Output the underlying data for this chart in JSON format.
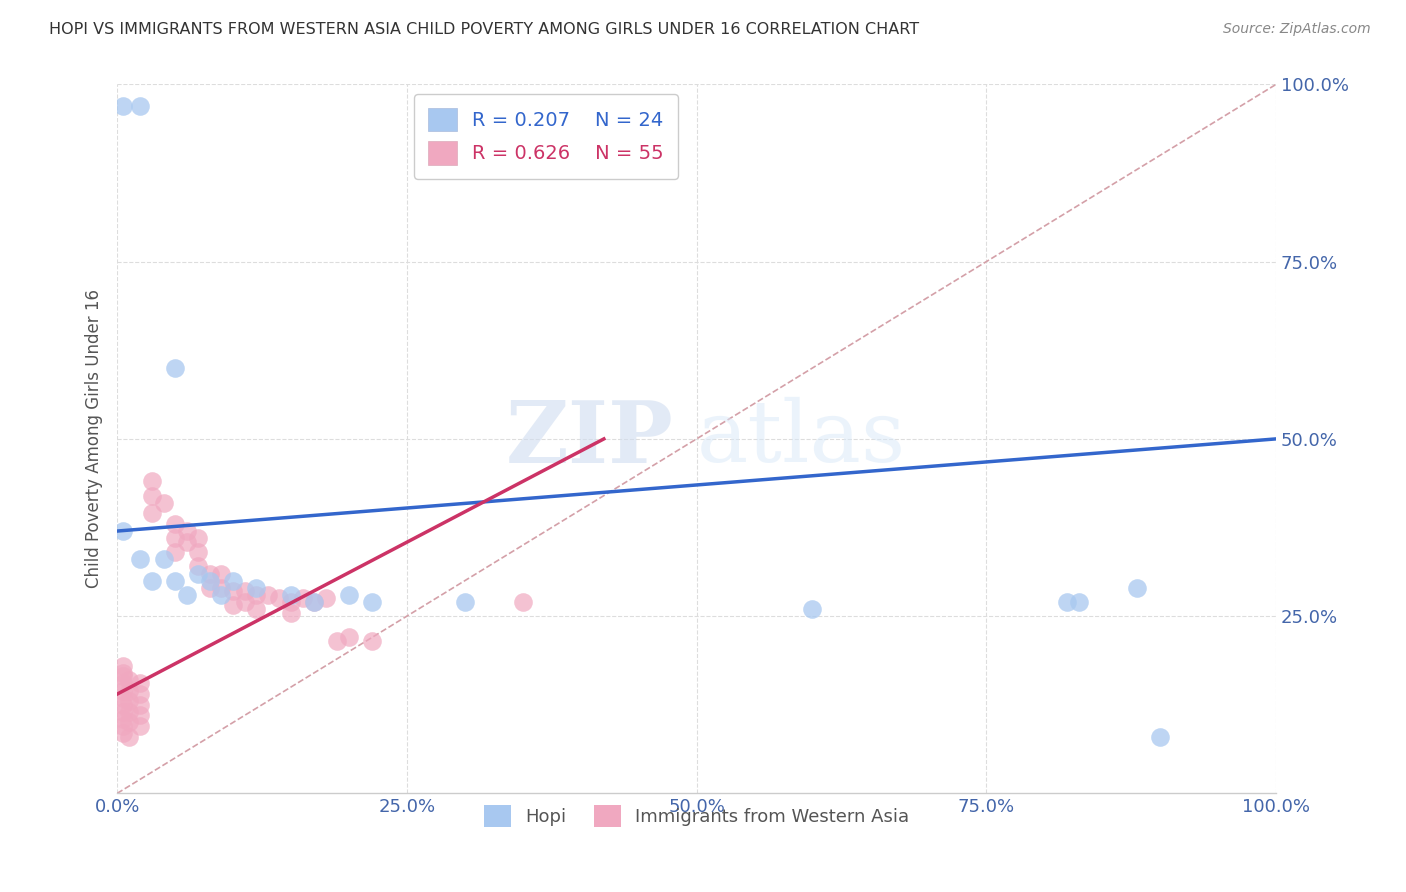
{
  "title": "HOPI VS IMMIGRANTS FROM WESTERN ASIA CHILD POVERTY AMONG GIRLS UNDER 16 CORRELATION CHART",
  "source": "Source: ZipAtlas.com",
  "ylabel": "Child Poverty Among Girls Under 16",
  "xlim": [
    0,
    1.0
  ],
  "ylim": [
    0,
    1.0
  ],
  "xtick_labels": [
    "0.0%",
    "25.0%",
    "50.0%",
    "75.0%",
    "100.0%"
  ],
  "xtick_vals": [
    0.0,
    0.25,
    0.5,
    0.75,
    1.0
  ],
  "ytick_labels": [
    "25.0%",
    "50.0%",
    "75.0%",
    "100.0%"
  ],
  "ytick_vals": [
    0.25,
    0.5,
    0.75,
    1.0
  ],
  "hopi_R": "R = 0.207",
  "hopi_N": "N = 24",
  "immigrants_R": "R = 0.626",
  "immigrants_N": "N = 55",
  "hopi_color": "#a8c8f0",
  "immigrants_color": "#f0a8c0",
  "hopi_line_color": "#3366cc",
  "immigrants_line_color": "#cc3366",
  "diagonal_color": "#d4a0a8",
  "hopi_line_x0": 0.0,
  "hopi_line_y0": 0.37,
  "hopi_line_x1": 1.0,
  "hopi_line_y1": 0.5,
  "imm_line_x0": 0.0,
  "imm_line_y0": 0.14,
  "imm_line_x1": 0.42,
  "imm_line_y1": 0.5,
  "hopi_scatter": [
    [
      0.005,
      0.97
    ],
    [
      0.02,
      0.97
    ],
    [
      0.005,
      0.37
    ],
    [
      0.02,
      0.33
    ],
    [
      0.03,
      0.3
    ],
    [
      0.04,
      0.33
    ],
    [
      0.05,
      0.6
    ],
    [
      0.05,
      0.3
    ],
    [
      0.06,
      0.28
    ],
    [
      0.07,
      0.31
    ],
    [
      0.08,
      0.3
    ],
    [
      0.09,
      0.28
    ],
    [
      0.1,
      0.3
    ],
    [
      0.12,
      0.29
    ],
    [
      0.15,
      0.28
    ],
    [
      0.17,
      0.27
    ],
    [
      0.2,
      0.28
    ],
    [
      0.22,
      0.27
    ],
    [
      0.3,
      0.27
    ],
    [
      0.6,
      0.26
    ],
    [
      0.82,
      0.27
    ],
    [
      0.83,
      0.27
    ],
    [
      0.88,
      0.29
    ],
    [
      0.9,
      0.08
    ]
  ],
  "immigrants_scatter": [
    [
      0.005,
      0.18
    ],
    [
      0.005,
      0.17
    ],
    [
      0.005,
      0.165
    ],
    [
      0.005,
      0.155
    ],
    [
      0.005,
      0.145
    ],
    [
      0.005,
      0.135
    ],
    [
      0.005,
      0.125
    ],
    [
      0.005,
      0.115
    ],
    [
      0.005,
      0.105
    ],
    [
      0.005,
      0.095
    ],
    [
      0.005,
      0.085
    ],
    [
      0.01,
      0.16
    ],
    [
      0.01,
      0.145
    ],
    [
      0.01,
      0.13
    ],
    [
      0.01,
      0.115
    ],
    [
      0.01,
      0.1
    ],
    [
      0.01,
      0.08
    ],
    [
      0.02,
      0.155
    ],
    [
      0.02,
      0.14
    ],
    [
      0.02,
      0.125
    ],
    [
      0.02,
      0.11
    ],
    [
      0.02,
      0.095
    ],
    [
      0.03,
      0.44
    ],
    [
      0.03,
      0.42
    ],
    [
      0.03,
      0.395
    ],
    [
      0.04,
      0.41
    ],
    [
      0.05,
      0.38
    ],
    [
      0.05,
      0.36
    ],
    [
      0.05,
      0.34
    ],
    [
      0.06,
      0.37
    ],
    [
      0.06,
      0.355
    ],
    [
      0.07,
      0.36
    ],
    [
      0.07,
      0.34
    ],
    [
      0.07,
      0.32
    ],
    [
      0.08,
      0.31
    ],
    [
      0.08,
      0.29
    ],
    [
      0.09,
      0.31
    ],
    [
      0.09,
      0.29
    ],
    [
      0.1,
      0.285
    ],
    [
      0.1,
      0.265
    ],
    [
      0.11,
      0.285
    ],
    [
      0.11,
      0.27
    ],
    [
      0.12,
      0.28
    ],
    [
      0.12,
      0.26
    ],
    [
      0.13,
      0.28
    ],
    [
      0.14,
      0.275
    ],
    [
      0.15,
      0.27
    ],
    [
      0.15,
      0.255
    ],
    [
      0.16,
      0.275
    ],
    [
      0.17,
      0.27
    ],
    [
      0.18,
      0.275
    ],
    [
      0.19,
      0.215
    ],
    [
      0.2,
      0.22
    ],
    [
      0.22,
      0.215
    ],
    [
      0.35,
      0.27
    ]
  ],
  "watermark_zip": "ZIP",
  "watermark_atlas": "atlas",
  "background_color": "#ffffff",
  "grid_color": "#dddddd"
}
